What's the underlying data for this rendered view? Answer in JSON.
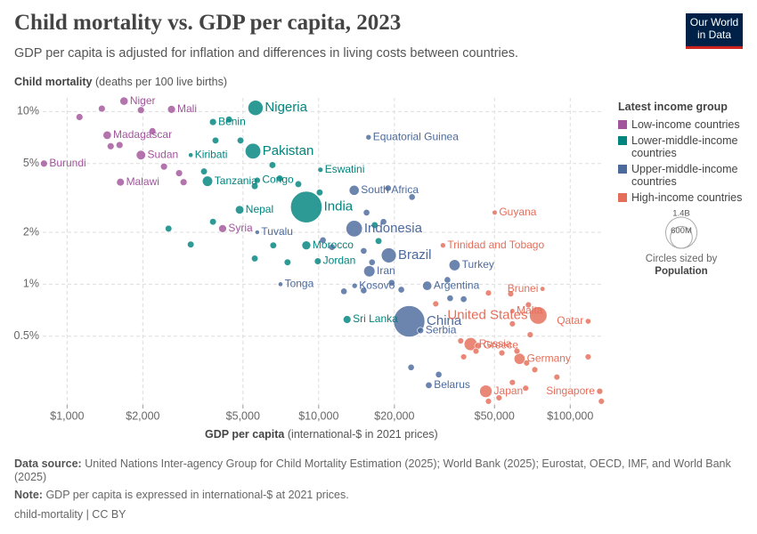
{
  "chart_data": {
    "type": "scatter",
    "title": "Child mortality vs. GDP per capita, 2023",
    "subtitle": "GDP per capita is adjusted for inflation and differences in living costs between countries.",
    "logo": "Our World in Data",
    "y_label": {
      "bold": "Child mortality",
      "rest": "(deaths per 100 live births)"
    },
    "x_label": {
      "bold": "GDP per capita",
      "rest": "(international-$ in 2021 prices)"
    },
    "x_scale": "log",
    "y_scale": "log",
    "grid": true,
    "xlim": [
      800,
      136000
    ],
    "ylim": [
      0.2,
      12
    ],
    "xticks": [
      {
        "value": 1000,
        "label": "$1,000"
      },
      {
        "value": 2000,
        "label": "$2,000"
      },
      {
        "value": 5000,
        "label": "$5,000"
      },
      {
        "value": 10000,
        "label": "$10,000"
      },
      {
        "value": 20000,
        "label": "$20,000"
      },
      {
        "value": 50000,
        "label": "$50,000"
      },
      {
        "value": 100000,
        "label": "$100,000"
      }
    ],
    "yticks": [
      {
        "value": 10,
        "label": "10%"
      },
      {
        "value": 5,
        "label": "5%"
      },
      {
        "value": 2,
        "label": "2%"
      },
      {
        "value": 1,
        "label": "1%"
      },
      {
        "value": 0.5,
        "label": "0.5%"
      }
    ],
    "legend_title": "Latest income group",
    "series": [
      {
        "name": "Low-income countries",
        "color": "#a2559c",
        "labels": [
          "Niger",
          "Mali",
          "Madagascar",
          "Sudan",
          "Burundi",
          "Malawi",
          "Syria",
          null,
          null,
          null,
          null,
          null,
          null,
          null,
          null,
          null
        ],
        "x": [
          1683,
          2600,
          1443,
          1965,
          809,
          1629,
          4150,
          1120,
          1374,
          1965,
          1616,
          2427,
          2787,
          2904,
          1490,
          2184
        ],
        "values": [
          11.5,
          10.3,
          7.3,
          5.6,
          5.0,
          3.9,
          2.1,
          9.3,
          10.4,
          10.2,
          6.4,
          4.8,
          4.4,
          3.9,
          6.3,
          7.7
        ],
        "sizes": [
          27000000,
          23000000,
          30000000,
          48000000,
          13000000,
          21000000,
          23000000,
          12000000,
          12000000,
          12000000,
          12000000,
          12000000,
          12000000,
          12000000,
          12000000,
          12000000
        ]
      },
      {
        "name": "Lower-middle-income countries",
        "color": "#00847e",
        "labels": [
          "Nigeria",
          "Benin",
          "Pakistan",
          "Kiribati",
          "Tanzania",
          "Congo",
          "Eswatini",
          "India",
          "Nepal",
          "Morocco",
          "Jordan",
          "Sri Lanka",
          null,
          null,
          null,
          null,
          null,
          null,
          null,
          null,
          null,
          null,
          null,
          null,
          null,
          null,
          null,
          null,
          null
        ],
        "x": [
          5610,
          3800,
          5480,
          3100,
          3615,
          5700,
          10160,
          8930,
          4850,
          8930,
          9920,
          12970,
          3890,
          4400,
          3500,
          4890,
          6550,
          7000,
          8300,
          2530,
          3100,
          3800,
          6600,
          7520,
          5570,
          5570,
          10090,
          16700,
          17300
        ],
        "values": [
          10.5,
          8.7,
          5.9,
          5.6,
          3.95,
          4.0,
          4.6,
          2.8,
          2.7,
          1.68,
          1.36,
          0.625,
          6.8,
          9.0,
          4.5,
          6.8,
          4.9,
          4.1,
          3.8,
          2.1,
          1.7,
          2.3,
          1.68,
          1.34,
          1.41,
          3.7,
          3.4,
          2.2,
          1.78
        ],
        "sizes": [
          224000000,
          13000000,
          240000000,
          130000,
          67000000,
          6000000,
          1200000,
          1430000000,
          31000000,
          38000000,
          11000000,
          22000000,
          10000000,
          10000000,
          10000000,
          10000000,
          10000000,
          10000000,
          10000000,
          10000000,
          10000000,
          10000000,
          10000000,
          10000000,
          10000000,
          10000000,
          10000000,
          10000000,
          10000000
        ]
      },
      {
        "name": "Upper-middle-income countries",
        "color": "#4c6a9c",
        "labels": [
          "Equatorial Guinea",
          "South Africa",
          "Tuvalu",
          "Indonesia",
          "Brazil",
          "Iran",
          "Tonga",
          "Turkey",
          "Kosovo",
          "Argentina",
          "China",
          "Serbia",
          "Belarus",
          null,
          null,
          null,
          null,
          null,
          null,
          null,
          null,
          null,
          null,
          null,
          null,
          null,
          null,
          null,
          null,
          null
        ],
        "x": [
          15780,
          13840,
          5700,
          13840,
          19000,
          15900,
          7050,
          34700,
          13900,
          27000,
          22900,
          25400,
          27400,
          18880,
          23500,
          15500,
          18100,
          10400,
          11300,
          15100,
          12600,
          15100,
          16300,
          19500,
          21300,
          32500,
          37700,
          33300,
          23300,
          30000
        ],
        "values": [
          7.1,
          3.5,
          2.0,
          2.1,
          1.47,
          1.19,
          1.0,
          1.29,
          0.98,
          0.98,
          0.61,
          0.54,
          0.26,
          3.6,
          3.2,
          2.6,
          2.3,
          1.8,
          1.64,
          1.56,
          0.91,
          0.92,
          1.34,
          1.02,
          0.93,
          1.06,
          0.82,
          0.83,
          0.33,
          0.3
        ],
        "sizes": [
          1700000,
          60000000,
          10000,
          278000000,
          216000000,
          89000000,
          100000,
          85000000,
          1700000,
          46000000,
          1410000000,
          6600000,
          9200000,
          8000000,
          8000000,
          8000000,
          8000000,
          8000000,
          8000000,
          8000000,
          8000000,
          8000000,
          8000000,
          8000000,
          8000000,
          8000000,
          8000000,
          8000000,
          8000000,
          8000000
        ]
      },
      {
        "name": "High-income countries",
        "color": "#e56e5a",
        "labels": [
          "Guyana",
          "Trinidad and Tobago",
          "Brunei",
          "United States",
          "Qatar",
          "Malta",
          "Russia",
          "Greece",
          "Germany",
          "Japan",
          "Singapore",
          null,
          null,
          null,
          null,
          null,
          null,
          null,
          null,
          null,
          null,
          null,
          null,
          null,
          null,
          null,
          null,
          null,
          null,
          null,
          null
        ],
        "x": [
          50100,
          31200,
          77600,
          74600,
          117800,
          58900,
          40200,
          43000,
          62900,
          46200,
          131000,
          47300,
          58000,
          68200,
          58900,
          69300,
          42200,
          37700,
          53500,
          67100,
          72300,
          58900,
          66500,
          117800,
          88500,
          52100,
          36700,
          29200,
          133000,
          47300,
          61400
        ],
        "values": [
          2.6,
          1.68,
          0.94,
          0.66,
          0.61,
          0.7,
          0.45,
          0.44,
          0.37,
          0.24,
          0.24,
          0.89,
          0.88,
          0.76,
          0.59,
          0.51,
          0.41,
          0.38,
          0.4,
          0.35,
          0.32,
          0.27,
          0.25,
          0.38,
          0.29,
          0.22,
          0.47,
          0.77,
          0.21,
          0.21,
          0.41
        ],
        "sizes": [
          800000,
          1500000,
          450000,
          335000000,
          2700000,
          500000,
          144000000,
          10000000,
          84000000,
          124000000,
          5900000,
          5000000,
          5000000,
          5000000,
          5000000,
          5000000,
          5000000,
          5000000,
          5000000,
          5000000,
          5000000,
          5000000,
          5000000,
          5000000,
          5000000,
          5000000,
          5000000,
          5000000,
          5000000,
          5000000,
          5000000
        ]
      }
    ],
    "size_legend": {
      "title": "Circles sized by",
      "variable": "Population",
      "values": [
        {
          "value": 1400000000,
          "label": "1.4B"
        },
        {
          "value": 600000000,
          "label": "600M"
        }
      ]
    },
    "footer": {
      "source_bold": "Data source:",
      "source": "United Nations Inter-agency Group for Child Mortality Estimation (2025); World Bank (2025); Eurostat, OECD, IMF, and World Bank (2025)",
      "note_bold": "Note:",
      "note": "GDP per capita is expressed in international-$ at 2021 prices.",
      "license": "child-mortality | CC BY"
    }
  }
}
